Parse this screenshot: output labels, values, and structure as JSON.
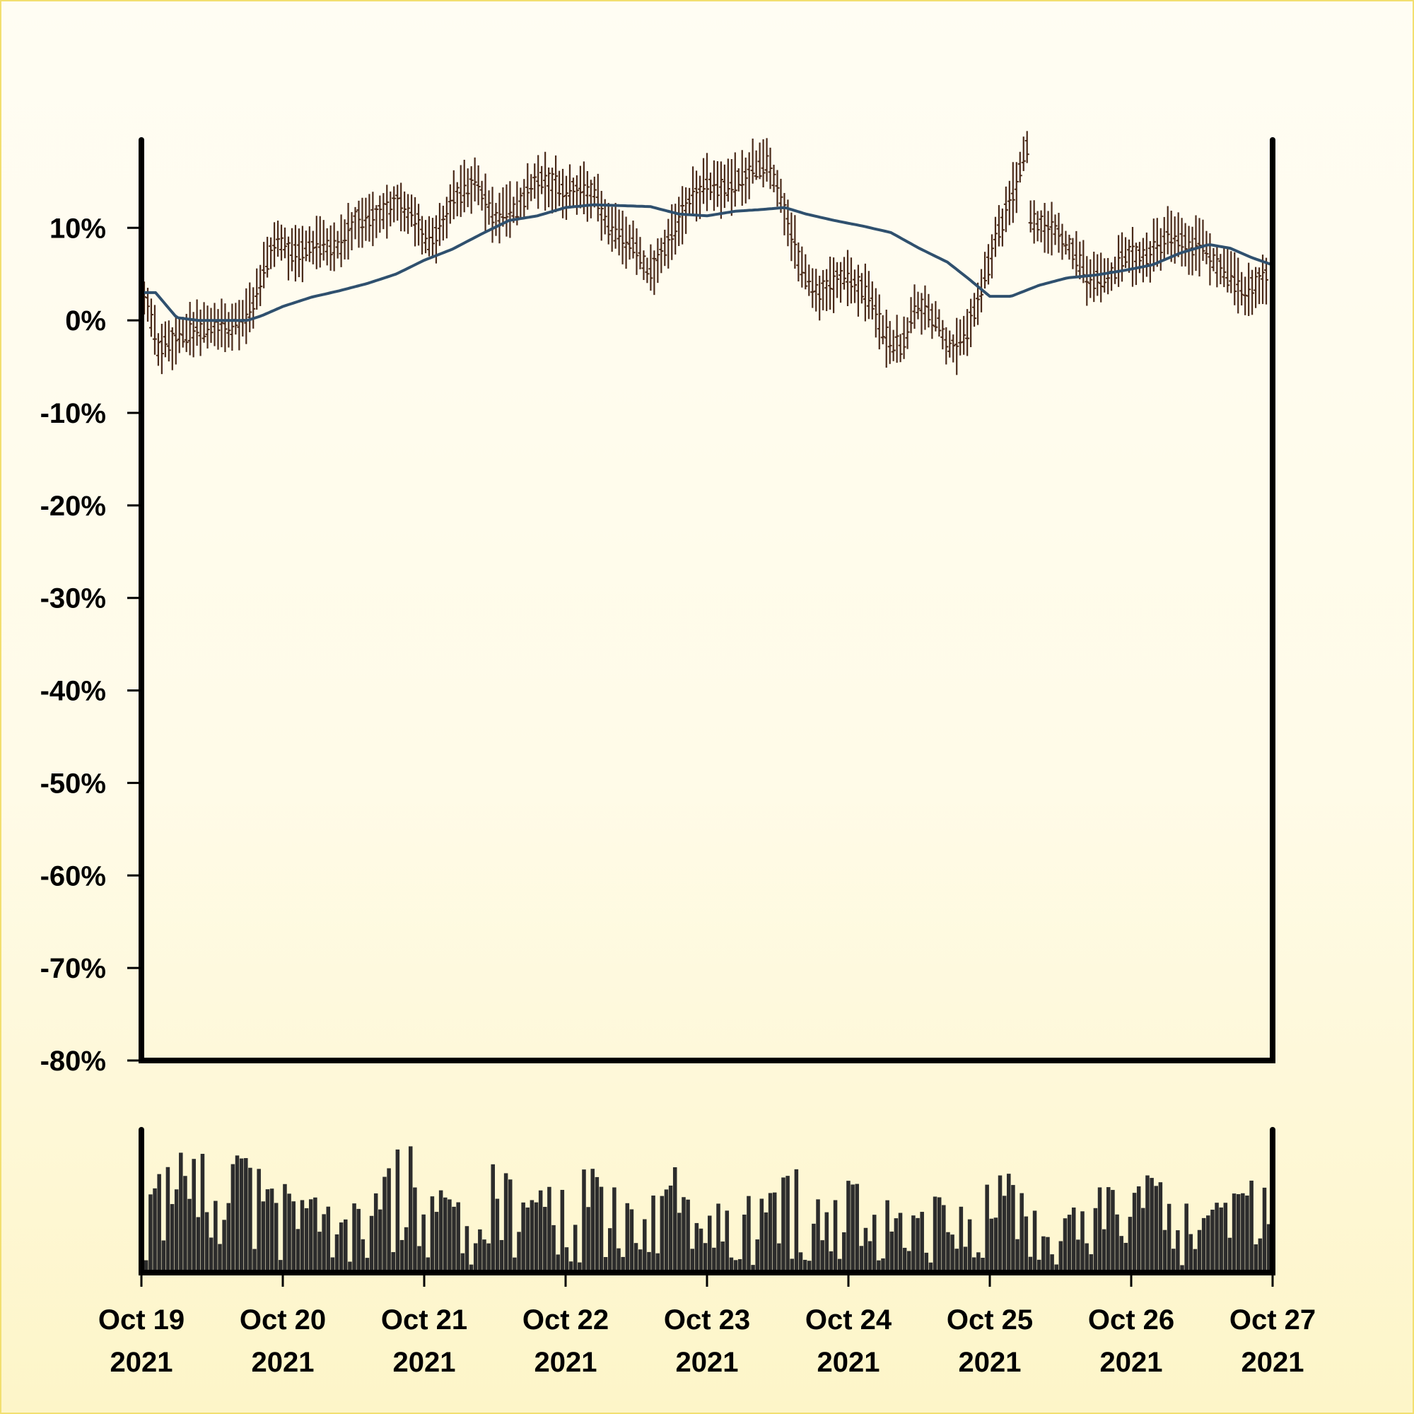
{
  "chart_data": {
    "type": "ohlc",
    "title": "",
    "xlabel": "",
    "ylabel": "",
    "x_range": [
      "2021-10-19",
      "2021-10-27"
    ],
    "y_range_percent": [
      -80,
      19.5
    ],
    "y_ticks": [
      "10%",
      "0%",
      "-10%",
      "-20%",
      "-30%",
      "-40%",
      "-50%",
      "-60%",
      "-70%",
      "-80%"
    ],
    "y_tick_values": [
      10,
      0,
      -10,
      -20,
      -30,
      -40,
      -50,
      -60,
      -70,
      -80
    ],
    "x_ticks": [
      {
        "line1": "Oct 19",
        "line2": "2021"
      },
      {
        "line1": "Oct 20",
        "line2": "2021"
      },
      {
        "line1": "Oct 21",
        "line2": "2021"
      },
      {
        "line1": "Oct 22",
        "line2": "2021"
      },
      {
        "line1": "Oct 23",
        "line2": "2021"
      },
      {
        "line1": "Oct 24",
        "line2": "2021"
      },
      {
        "line1": "Oct 25",
        "line2": "2021"
      },
      {
        "line1": "Oct 26",
        "line2": "2021"
      },
      {
        "line1": "Oct 27",
        "line2": "2021"
      }
    ],
    "price_trend_percent": [
      [
        0.0,
        3
      ],
      [
        0.1,
        -3
      ],
      [
        0.2,
        -2
      ],
      [
        0.4,
        -1
      ],
      [
        0.6,
        -1
      ],
      [
        0.75,
        1
      ],
      [
        0.85,
        5
      ],
      [
        0.95,
        9
      ],
      [
        1.05,
        7
      ],
      [
        1.2,
        8
      ],
      [
        1.4,
        8
      ],
      [
        1.5,
        11
      ],
      [
        1.65,
        11
      ],
      [
        1.8,
        13
      ],
      [
        1.95,
        11
      ],
      [
        2.05,
        8
      ],
      [
        2.2,
        13
      ],
      [
        2.35,
        15
      ],
      [
        2.5,
        11
      ],
      [
        2.65,
        12
      ],
      [
        2.8,
        15
      ],
      [
        2.9,
        15
      ],
      [
        3.0,
        14
      ],
      [
        3.2,
        14
      ],
      [
        3.3,
        10
      ],
      [
        3.5,
        8
      ],
      [
        3.6,
        5
      ],
      [
        3.75,
        9
      ],
      [
        3.85,
        12
      ],
      [
        4.0,
        15
      ],
      [
        4.15,
        14
      ],
      [
        4.3,
        16
      ],
      [
        4.45,
        17
      ],
      [
        4.55,
        13
      ],
      [
        4.7,
        5
      ],
      [
        4.8,
        3
      ],
      [
        5.0,
        5
      ],
      [
        5.15,
        3
      ],
      [
        5.3,
        -2
      ],
      [
        5.4,
        -3
      ],
      [
        5.5,
        2
      ],
      [
        5.65,
        0
      ],
      [
        5.75,
        -3
      ],
      [
        5.85,
        -2
      ],
      [
        6.0,
        5
      ],
      [
        6.1,
        10
      ],
      [
        6.2,
        14
      ],
      [
        6.3,
        19
      ],
      [
        6.32,
        11
      ],
      [
        6.45,
        10
      ],
      [
        6.6,
        8
      ],
      [
        6.75,
        4
      ],
      [
        6.9,
        5
      ],
      [
        7.0,
        7
      ],
      [
        7.15,
        7
      ],
      [
        7.3,
        9
      ],
      [
        7.45,
        8
      ],
      [
        7.55,
        8
      ],
      [
        7.7,
        5
      ],
      [
        7.85,
        3
      ],
      [
        8.0,
        5
      ]
    ],
    "moving_average_percent": [
      [
        0.0,
        3
      ],
      [
        0.1,
        3
      ],
      [
        0.25,
        0.3
      ],
      [
        0.4,
        0
      ],
      [
        0.5,
        0
      ],
      [
        0.75,
        0
      ],
      [
        0.85,
        0.5
      ],
      [
        1.0,
        1.5
      ],
      [
        1.2,
        2.5
      ],
      [
        1.4,
        3.2
      ],
      [
        1.6,
        4
      ],
      [
        1.8,
        5
      ],
      [
        2.0,
        6.5
      ],
      [
        2.2,
        7.7
      ],
      [
        2.4,
        9.3
      ],
      [
        2.6,
        10.8
      ],
      [
        2.8,
        11.3
      ],
      [
        3.0,
        12.2
      ],
      [
        3.2,
        12.5
      ],
      [
        3.4,
        12.4
      ],
      [
        3.6,
        12.3
      ],
      [
        3.8,
        11.5
      ],
      [
        4.0,
        11.3
      ],
      [
        4.2,
        11.8
      ],
      [
        4.4,
        12.0
      ],
      [
        4.55,
        12.2
      ],
      [
        4.7,
        11.5
      ],
      [
        4.9,
        10.8
      ],
      [
        5.1,
        10.2
      ],
      [
        5.3,
        9.5
      ],
      [
        5.5,
        7.8
      ],
      [
        5.7,
        6.3
      ],
      [
        5.85,
        4.5
      ],
      [
        6.0,
        2.6
      ],
      [
        6.15,
        2.6
      ],
      [
        6.35,
        3.8
      ],
      [
        6.55,
        4.6
      ],
      [
        6.75,
        4.9
      ],
      [
        6.95,
        5.4
      ],
      [
        7.15,
        6.0
      ],
      [
        7.35,
        7.3
      ],
      [
        7.55,
        8.2
      ],
      [
        7.7,
        7.8
      ],
      [
        7.85,
        6.8
      ],
      [
        8.0,
        6.0
      ]
    ],
    "volume_levels": [
      0.58,
      0.82,
      0.9,
      0.85,
      0.82,
      0.95,
      0.6,
      0.78,
      0.74,
      0.66,
      0.35,
      0.86,
      0.9,
      0.72,
      0.48,
      0.75,
      0.79,
      0.6,
      0.58,
      0.72,
      0.84,
      0.65,
      0.5,
      0.55,
      0.78,
      0.4,
      0.52,
      0.63,
      0.6,
      0.68,
      0.92,
      0.45,
      0.7,
      0.65,
      0.5,
      0.43,
      0.58,
      0.54,
      0.6,
      0.82,
      0.56,
      0.35,
      0.45,
      0.62,
      0.62,
      0.66,
      0.72,
      0.55,
      0.62,
      0.51,
      0.7,
      0.6
    ],
    "colors": {
      "price_bars": "#4a2a1a",
      "moving_average": "#2f506e",
      "volume": "#2c2c2c",
      "axes": "#000000",
      "background_top": "#fffdf3",
      "background_bottom": "#fdf5c8",
      "frame": "#f2df70"
    },
    "grid": false,
    "legend": "none"
  }
}
